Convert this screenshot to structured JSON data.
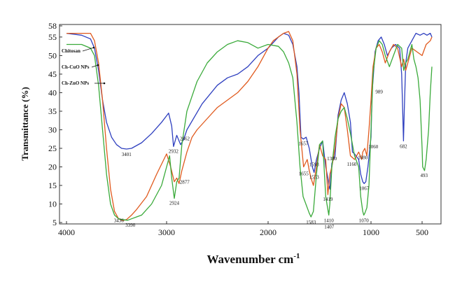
{
  "chart_data": {
    "type": "line",
    "title": "",
    "ylabel": "Transmittance (%)",
    "xlabel": "Wavenumber cm",
    "xlabel_superscript": "-1",
    "xlim": [
      4000,
      300
    ],
    "ylim": [
      5,
      58
    ],
    "x_ticks": [
      "4000",
      "3000",
      "2000",
      "1000",
      "500"
    ],
    "x_tick_values": [
      4000,
      3000,
      2000,
      1000,
      500
    ],
    "y_ticks": [
      "5",
      "10",
      "15",
      "20",
      "25",
      "30",
      "35",
      "40",
      "45",
      "50",
      "55",
      "58"
    ],
    "y_tick_values": [
      5,
      10,
      15,
      20,
      25,
      30,
      35,
      40,
      45,
      50,
      55,
      58
    ],
    "series": [
      {
        "name": "Chitosan",
        "color": "#2e3fbf",
        "x": [
          4000,
          3850,
          3760,
          3720,
          3680,
          3640,
          3600,
          3550,
          3500,
          3450,
          3401,
          3350,
          3250,
          3150,
          3050,
          2980,
          2950,
          2932,
          2900,
          2862,
          2830,
          2800,
          2650,
          2500,
          2400,
          2300,
          2200,
          2100,
          2000,
          1900,
          1850,
          1800,
          1760,
          1720,
          1700,
          1680,
          1657,
          1630,
          1600,
          1570,
          1553,
          1530,
          1500,
          1470,
          1440,
          1419,
          1410,
          1400,
          1380,
          1350,
          1320,
          1290,
          1260,
          1230,
          1200,
          1180,
          1160,
          1120,
          1100,
          1080,
          1067,
          1050,
          1030,
          1000,
          989,
          960,
          930,
          900,
          870,
          840,
          800,
          760,
          720,
          700,
          690,
          682,
          675,
          660,
          640,
          600,
          560,
          520,
          480,
          440,
          400,
          380
        ],
        "y": [
          56,
          55.5,
          54.5,
          52,
          46,
          38,
          32,
          28,
          26,
          25,
          24.8,
          25,
          26.5,
          29,
          32,
          34.5,
          31,
          25.5,
          28.5,
          26,
          27.5,
          30,
          37,
          42,
          44,
          45,
          47,
          50,
          52,
          55,
          56,
          55.5,
          53,
          47,
          40,
          28,
          27.5,
          28,
          25,
          20,
          18.5,
          22,
          25,
          27,
          20,
          17,
          15,
          14,
          21,
          23,
          34,
          38,
          40,
          37,
          32,
          24,
          23.5,
          22,
          18,
          16,
          15.5,
          16,
          20,
          28,
          40,
          51,
          54,
          55,
          53,
          50,
          52,
          53,
          52,
          45,
          35,
          27,
          35,
          48,
          52,
          54,
          56,
          55.5,
          56,
          55.5,
          56,
          55
        ]
      },
      {
        "name": "Ch-CuO NPs",
        "color": "#e05a1e",
        "x": [
          4000,
          3850,
          3760,
          3720,
          3680,
          3640,
          3600,
          3560,
          3520,
          3480,
          3436,
          3400,
          3350,
          3300,
          3200,
          3100,
          3000,
          2960,
          2924,
          2900,
          2877,
          2850,
          2800,
          2750,
          2700,
          2600,
          2500,
          2400,
          2300,
          2200,
          2100,
          2000,
          1950,
          1900,
          1850,
          1800,
          1760,
          1720,
          1690,
          1655,
          1620,
          1600,
          1583,
          1560,
          1530,
          1500,
          1470,
          1440,
          1419,
          1400,
          1380,
          1350,
          1320,
          1290,
          1260,
          1230,
          1200,
          1160,
          1120,
          1090,
          1080,
          1060,
          1040,
          1020,
          1000,
          980,
          950,
          920,
          890,
          860,
          820,
          780,
          740,
          700,
          680,
          660,
          640,
          600,
          550,
          500,
          450,
          400,
          380
        ],
        "y": [
          56,
          56,
          56,
          54,
          48,
          38,
          25,
          14,
          8,
          6,
          5.5,
          5.8,
          7,
          8.5,
          12,
          18,
          23.5,
          20,
          16,
          17,
          15.5,
          19,
          24,
          28,
          30,
          33,
          36,
          38,
          40,
          43,
          47,
          52,
          54,
          55,
          56,
          56.5,
          54,
          45,
          30,
          20,
          22,
          19,
          17,
          15,
          20,
          26,
          23,
          22,
          12.5,
          18,
          20,
          25,
          33,
          37,
          36,
          30,
          23,
          22,
          24,
          22,
          24,
          25,
          23,
          30,
          38,
          47,
          52,
          53,
          51,
          48,
          51,
          53,
          52,
          47,
          49,
          46,
          48,
          52,
          51,
          50,
          53,
          54,
          55
        ]
      },
      {
        "name": "Ch-ZnO NPs",
        "color": "#3aaa3a",
        "x": [
          4000,
          3850,
          3760,
          3720,
          3680,
          3640,
          3600,
          3560,
          3520,
          3480,
          3440,
          3390,
          3350,
          3300,
          3250,
          3150,
          3050,
          3000,
          2970,
          2950,
          2924,
          2900,
          2877,
          2850,
          2800,
          2700,
          2600,
          2500,
          2400,
          2300,
          2200,
          2100,
          2000,
          1900,
          1850,
          1800,
          1760,
          1720,
          1690,
          1660,
          1620,
          1600,
          1583,
          1560,
          1530,
          1500,
          1470,
          1440,
          1410,
          1400,
          1380,
          1350,
          1320,
          1290,
          1260,
          1230,
          1200,
          1160,
          1120,
          1100,
          1080,
          1070,
          1060,
          1040,
          1020,
          1000,
          980,
          950,
          920,
          890,
          860,
          820,
          780,
          740,
          700,
          680,
          660,
          640,
          600,
          580,
          560,
          540,
          520,
          500,
          493,
          470,
          450,
          420,
          400,
          380
        ],
        "y": [
          53,
          53,
          52,
          50,
          42,
          30,
          18,
          10,
          7,
          6,
          5.8,
          5.6,
          6,
          6.5,
          7,
          10,
          15,
          20,
          23,
          17,
          11.5,
          16,
          17,
          26,
          35,
          43,
          48,
          51,
          53,
          54,
          53.5,
          52,
          53,
          52.5,
          51,
          48,
          44,
          32,
          20,
          12,
          9,
          7.5,
          6.5,
          8,
          18,
          26,
          27,
          12,
          7,
          10,
          20,
          28,
          33,
          35,
          36,
          33,
          29,
          23,
          20,
          12,
          8,
          7,
          7.5,
          9,
          15,
          30,
          45,
          52,
          54,
          53,
          50,
          47,
          50,
          53,
          52,
          46,
          48,
          49,
          53,
          49,
          47,
          44,
          38,
          25,
          20,
          19,
          22,
          30,
          40,
          47
        ]
      }
    ],
    "annotations": [
      {
        "text": "3401",
        "x": 3401,
        "y": 24.8
      },
      {
        "text": "2932",
        "x": 2932,
        "y": 25.5
      },
      {
        "text": "2862",
        "x": 2862,
        "y": 26
      },
      {
        "text": "2877",
        "x": 2877,
        "y": 15.5
      },
      {
        "text": "2924",
        "x": 2924,
        "y": 11.5
      },
      {
        "text": "3436",
        "x": 3436,
        "y": 5.5
      },
      {
        "text": "3390",
        "x": 3390,
        "y": 5.6
      },
      {
        "text": "1657",
        "x": 1657,
        "y": 27.5
      },
      {
        "text": "1593",
        "x": 1593,
        "y": 21.5
      },
      {
        "text": "1655",
        "x": 1655,
        "y": 20
      },
      {
        "text": "1553",
        "x": 1553,
        "y": 18.5
      },
      {
        "text": "1583",
        "x": 1583,
        "y": 6.5
      },
      {
        "text": "1419",
        "x": 1419,
        "y": 12.5
      },
      {
        "text": "1410",
        "x": 1410,
        "y": 7
      },
      {
        "text": "1407",
        "x": 1407,
        "y": 5.5
      },
      {
        "text": "1380",
        "x": 1380,
        "y": 21
      },
      {
        "text": "1160",
        "x": 1160,
        "y": 22
      },
      {
        "text": "1080",
        "x": 1080,
        "y": 24
      },
      {
        "text": "1060",
        "x": 1060,
        "y": 25
      },
      {
        "text": "1067",
        "x": 1067,
        "y": 15.5
      },
      {
        "text": "1070",
        "x": 1070,
        "y": 7
      },
      {
        "text": "989",
        "x": 989,
        "y": 40
      },
      {
        "text": "682",
        "x": 682,
        "y": 27
      },
      {
        "text": "493",
        "x": 493,
        "y": 19
      }
    ],
    "legend_labels": [
      {
        "text": "Chitosan",
        "series": 0
      },
      {
        "text": "Ch-CuO NPs",
        "series": 1
      },
      {
        "text": "Ch-ZnO NPs",
        "series": 2
      }
    ],
    "grid": false
  }
}
